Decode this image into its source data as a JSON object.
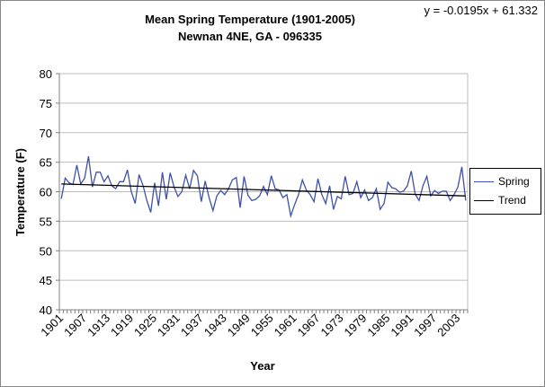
{
  "chart_data": {
    "type": "line",
    "title": "Mean Spring Temperature (1901-2005)",
    "subtitle": "Newnan 4NE, GA - 096335",
    "annotation": "y = -0.0195x + 61.332",
    "xlabel": "Year",
    "ylabel": "Temperature (F)",
    "ylim": [
      40,
      80
    ],
    "yticks": [
      40,
      45,
      50,
      55,
      60,
      65,
      70,
      75,
      80
    ],
    "x_start": 1901,
    "x_end": 2005,
    "xtick_labels": [
      "1901",
      "1907",
      "1913",
      "1919",
      "1925",
      "1931",
      "1937",
      "1943",
      "1949",
      "1955",
      "1961",
      "1967",
      "1973",
      "1979",
      "1985",
      "1991",
      "1997",
      "2003"
    ],
    "grid": "horizontal",
    "legend_position": "right",
    "series": [
      {
        "name": "Spring",
        "color": "#3F51A8",
        "values": [
          58.8,
          62.3,
          61.5,
          61.2,
          64.5,
          61.3,
          62.3,
          66.0,
          60.8,
          63.3,
          63.3,
          61.7,
          62.7,
          61.0,
          60.5,
          61.7,
          61.7,
          63.7,
          60.0,
          58.0,
          62.9,
          61.1,
          58.5,
          56.5,
          61.5,
          57.6,
          63.3,
          58.7,
          63.2,
          60.8,
          59.2,
          60.0,
          62.8,
          60.5,
          63.6,
          62.7,
          58.3,
          61.8,
          59.0,
          56.8,
          59.3,
          60.2,
          59.5,
          60.5,
          62.0,
          62.4,
          57.3,
          62.6,
          59.4,
          58.5,
          58.7,
          59.3,
          60.9,
          59.5,
          62.7,
          60.5,
          60.3,
          59.0,
          59.5,
          55.9,
          57.8,
          59.5,
          62.0,
          60.3,
          59.5,
          58.3,
          62.2,
          59.5,
          58.0,
          61.0,
          57.0,
          59.2,
          58.8,
          62.6,
          59.5,
          59.7,
          61.7,
          59.0,
          60.3,
          58.5,
          59.0,
          60.5,
          57.0,
          58.0,
          61.6,
          60.7,
          60.5,
          59.9,
          60.1,
          61.0,
          63.5,
          59.6,
          58.5,
          61.0,
          62.6,
          59.3,
          60.2,
          59.7,
          60.1,
          60.1,
          58.5,
          59.5,
          60.8,
          64.2,
          58.5
        ]
      },
      {
        "name": "Trend",
        "color": "#000000",
        "slope": -0.0195,
        "intercept": 61.332
      }
    ]
  }
}
